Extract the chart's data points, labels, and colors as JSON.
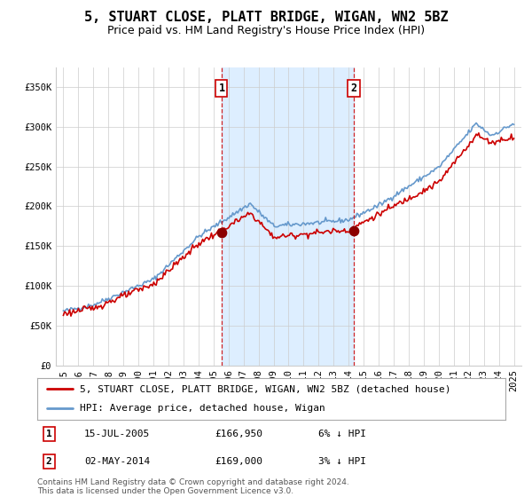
{
  "title": "5, STUART CLOSE, PLATT BRIDGE, WIGAN, WN2 5BZ",
  "subtitle": "Price paid vs. HM Land Registry's House Price Index (HPI)",
  "legend_label_red": "5, STUART CLOSE, PLATT BRIDGE, WIGAN, WN2 5BZ (detached house)",
  "legend_label_blue": "HPI: Average price, detached house, Wigan",
  "footer": "Contains HM Land Registry data © Crown copyright and database right 2024.\nThis data is licensed under the Open Government Licence v3.0.",
  "transactions": [
    {
      "num": 1,
      "date": "15-JUL-2005",
      "price": 166950,
      "pct": "6%",
      "dir": "↓"
    },
    {
      "num": 2,
      "date": "02-MAY-2014",
      "price": 169000,
      "pct": "3%",
      "dir": "↓"
    }
  ],
  "sale_dates_decimal": [
    2005.54,
    2014.34
  ],
  "sale_prices": [
    166950,
    169000
  ],
  "shaded_region": [
    2005.54,
    2014.34
  ],
  "y_min": 0,
  "y_max": 375000,
  "y_ticks": [
    0,
    50000,
    100000,
    150000,
    200000,
    250000,
    300000,
    350000
  ],
  "y_tick_labels": [
    "£0",
    "£50K",
    "£100K",
    "£150K",
    "£200K",
    "£250K",
    "£300K",
    "£350K"
  ],
  "x_min": 1994.5,
  "x_max": 2025.5,
  "x_ticks": [
    1995,
    1996,
    1997,
    1998,
    1999,
    2000,
    2001,
    2002,
    2003,
    2004,
    2005,
    2006,
    2007,
    2008,
    2009,
    2010,
    2011,
    2012,
    2013,
    2014,
    2015,
    2016,
    2017,
    2018,
    2019,
    2020,
    2021,
    2022,
    2023,
    2024,
    2025
  ],
  "color_red": "#cc0000",
  "color_blue": "#6699cc",
  "color_shading": "#ddeeff",
  "color_dot": "#8b0000",
  "grid_color": "#cccccc",
  "bg_color": "#ffffff",
  "line_width": 1.2,
  "title_fontsize": 11,
  "subtitle_fontsize": 9,
  "tick_fontsize": 7.5,
  "legend_fontsize": 8
}
